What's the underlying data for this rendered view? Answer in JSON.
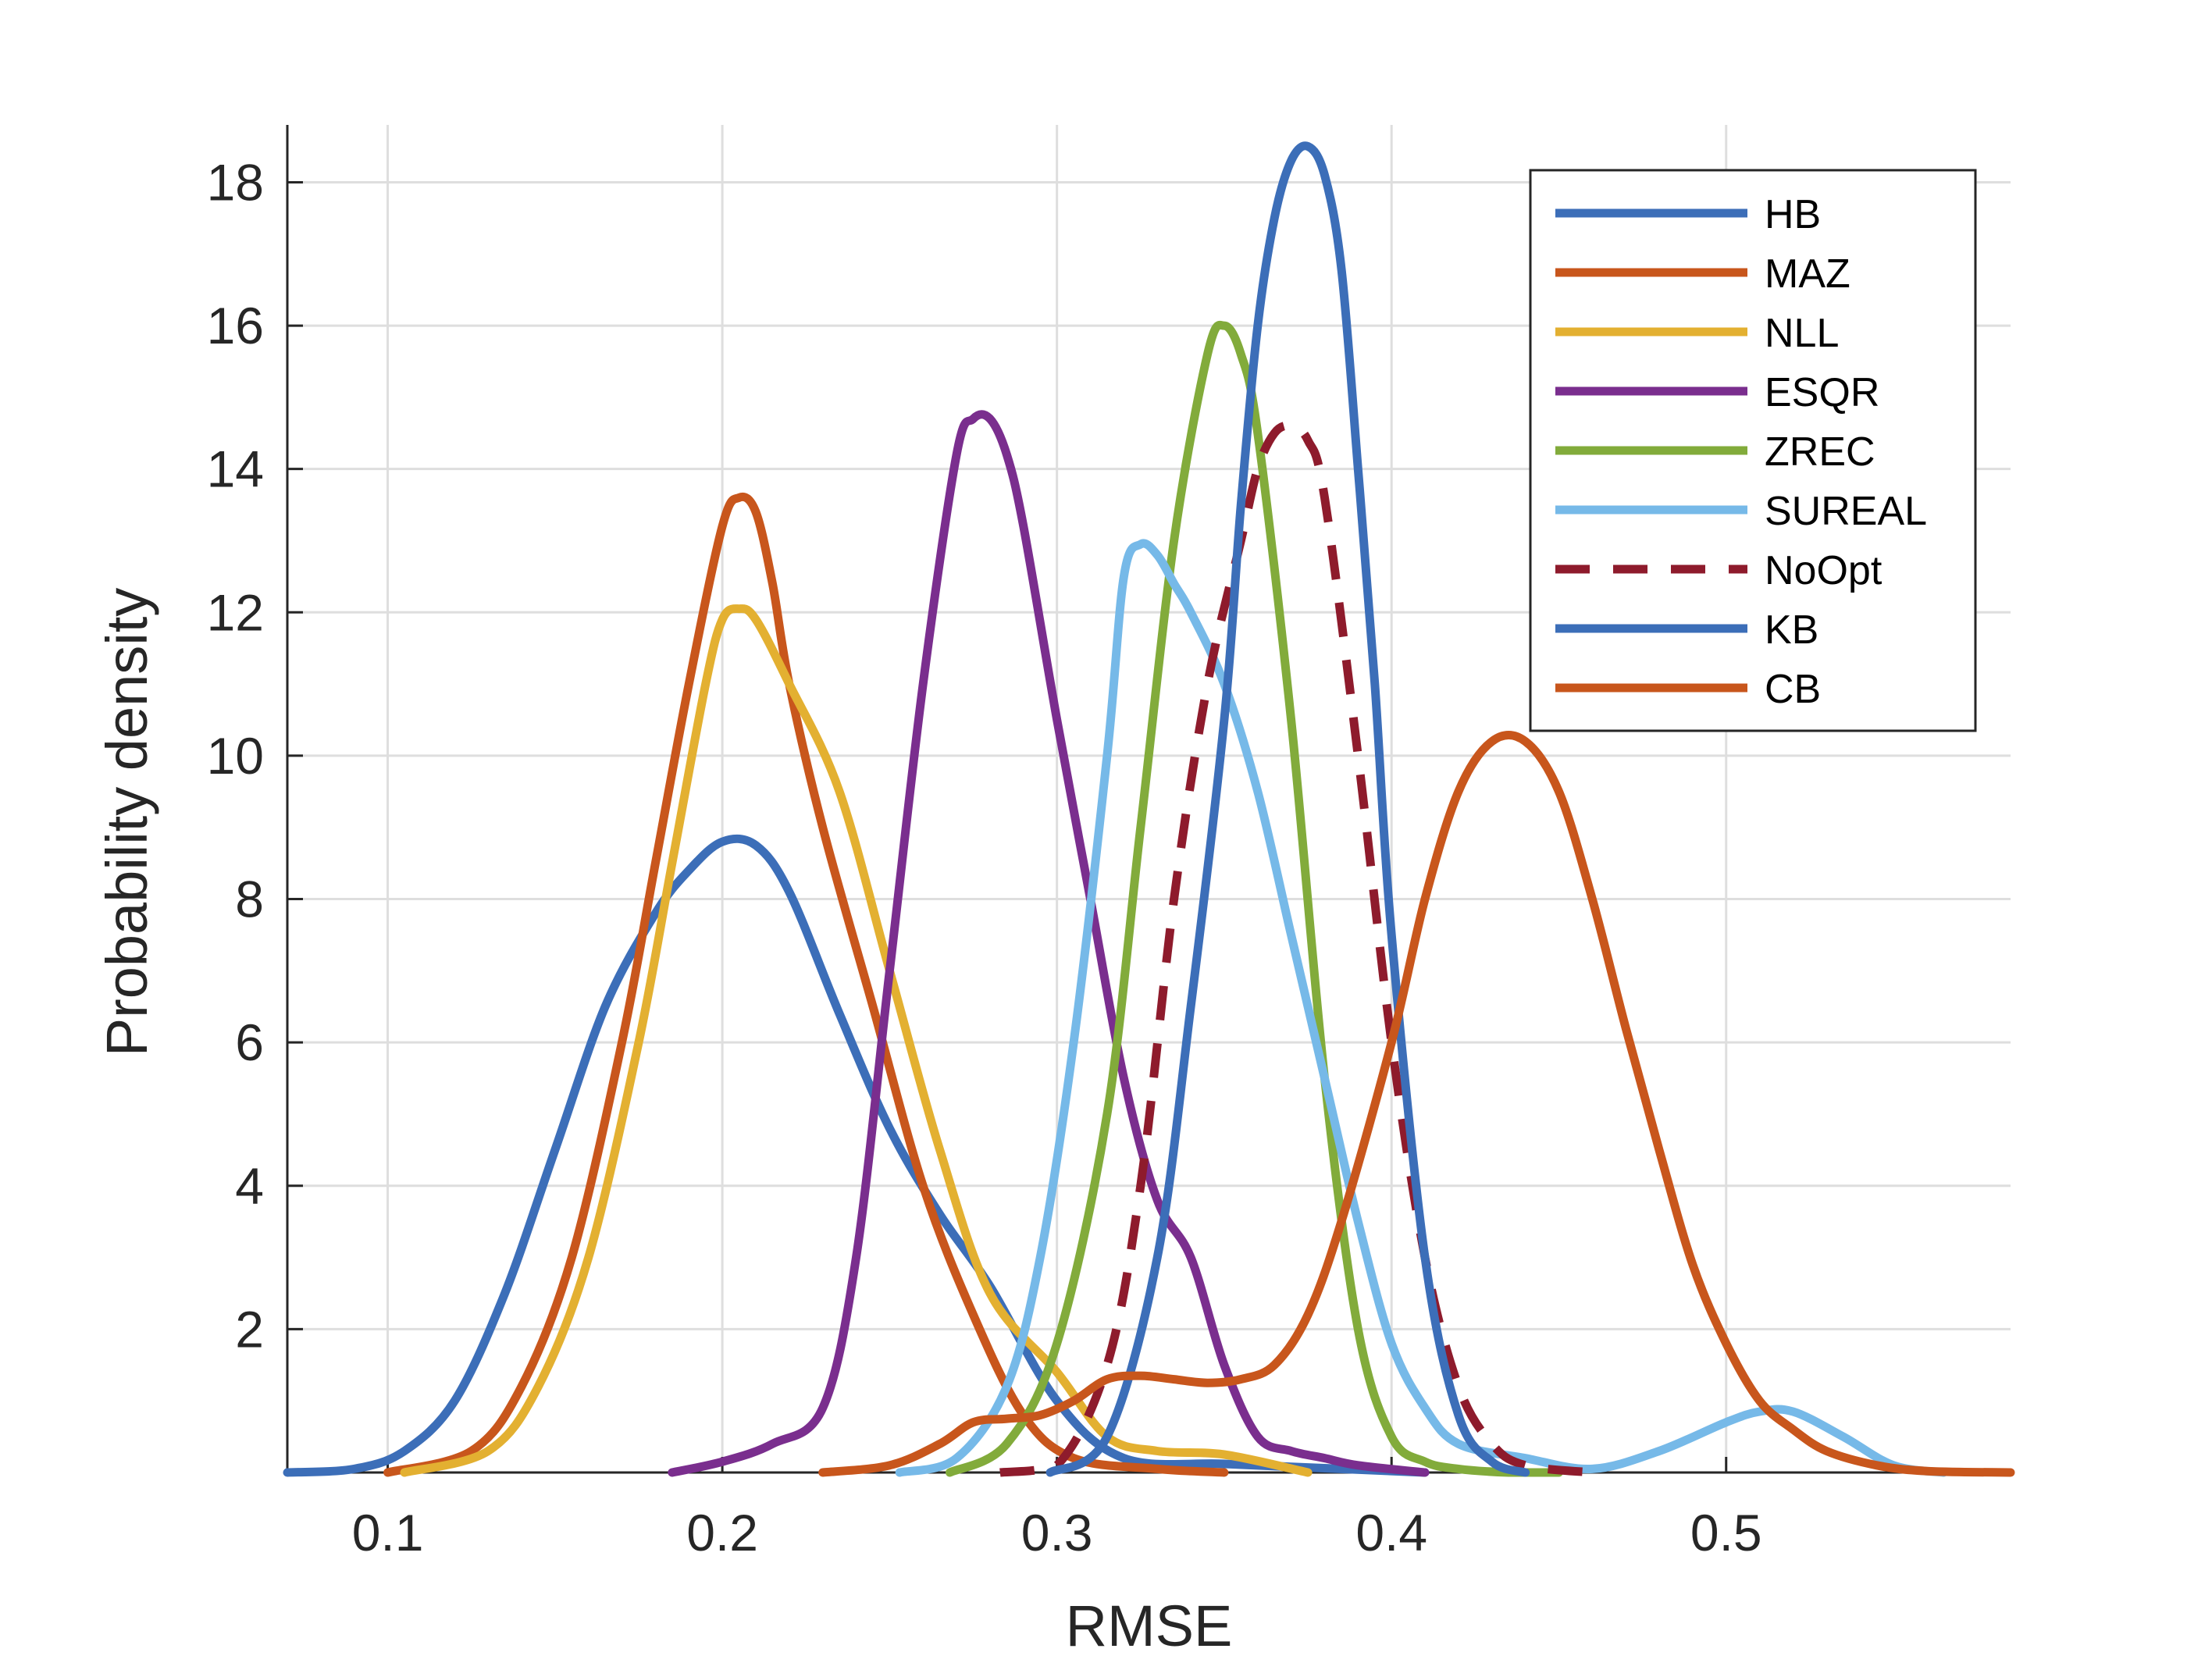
{
  "chart_data": {
    "type": "line",
    "title": "",
    "xlabel": "RMSE",
    "ylabel": "Probability density",
    "xlim": [
      0.07,
      0.585
    ],
    "ylim": [
      0,
      18.8
    ],
    "xticks": [
      0.1,
      0.2,
      0.3,
      0.4,
      0.5
    ],
    "xtick_labels": [
      "0.1",
      "0.2",
      "0.3",
      "0.4",
      "0.5"
    ],
    "yticks": [
      2,
      4,
      6,
      8,
      10,
      12,
      14,
      16,
      18
    ],
    "ytick_labels": [
      "2",
      "4",
      "6",
      "8",
      "10",
      "12",
      "14",
      "16",
      "18"
    ],
    "grid": true,
    "legend_position": "top-right",
    "series": [
      {
        "name": "HB",
        "color": "#3C6EB8",
        "dashed": false,
        "x": [
          0.07,
          0.09,
          0.105,
          0.12,
          0.135,
          0.15,
          0.165,
          0.18,
          0.19,
          0.2,
          0.21,
          0.22,
          0.235,
          0.25,
          0.265,
          0.28,
          0.3,
          0.32,
          0.35,
          0.38,
          0.41
        ],
        "y": [
          0.0,
          0.05,
          0.3,
          1.0,
          2.5,
          4.5,
          6.5,
          7.8,
          8.4,
          8.8,
          8.75,
          8.1,
          6.4,
          4.8,
          3.6,
          2.6,
          1.0,
          0.2,
          0.12,
          0.06,
          0.0
        ]
      },
      {
        "name": "MAZ",
        "color": "#C8561C",
        "dashed": false,
        "x": [
          0.1,
          0.125,
          0.14,
          0.155,
          0.17,
          0.18,
          0.19,
          0.2,
          0.205,
          0.21,
          0.215,
          0.22,
          0.23,
          0.245,
          0.26,
          0.275,
          0.29,
          0.305,
          0.33,
          0.35
        ],
        "y": [
          0.0,
          0.3,
          1.2,
          3.0,
          6.0,
          8.5,
          11.0,
          13.2,
          13.6,
          13.4,
          12.4,
          11.0,
          9.0,
          6.5,
          4.0,
          2.2,
          0.8,
          0.2,
          0.05,
          0.0
        ]
      },
      {
        "name": "NLL",
        "color": "#E3B031",
        "dashed": false,
        "x": [
          0.105,
          0.13,
          0.145,
          0.16,
          0.175,
          0.185,
          0.195,
          0.2,
          0.205,
          0.21,
          0.22,
          0.235,
          0.25,
          0.265,
          0.28,
          0.3,
          0.315,
          0.33,
          0.35,
          0.375
        ],
        "y": [
          0.0,
          0.3,
          1.2,
          3.0,
          6.0,
          8.5,
          11.0,
          11.9,
          12.05,
          11.9,
          11.0,
          9.5,
          7.0,
          4.5,
          2.5,
          1.4,
          0.5,
          0.3,
          0.25,
          0.0
        ]
      },
      {
        "name": "ESQR",
        "color": "#7A2E8E",
        "dashed": false,
        "x": [
          0.185,
          0.2,
          0.215,
          0.23,
          0.24,
          0.25,
          0.26,
          0.27,
          0.275,
          0.28,
          0.285,
          0.29,
          0.3,
          0.31,
          0.32,
          0.33,
          0.34,
          0.35,
          0.36,
          0.37,
          0.38,
          0.39,
          0.41
        ],
        "y": [
          0.0,
          0.15,
          0.4,
          0.9,
          3.0,
          7.0,
          11.0,
          14.2,
          14.7,
          14.7,
          14.2,
          13.2,
          10.5,
          8.0,
          5.5,
          3.8,
          3.0,
          1.5,
          0.5,
          0.3,
          0.2,
          0.1,
          0.0
        ]
      },
      {
        "name": "ZREC",
        "color": "#82AB3B",
        "dashed": false,
        "x": [
          0.268,
          0.285,
          0.3,
          0.315,
          0.325,
          0.335,
          0.345,
          0.35,
          0.355,
          0.36,
          0.37,
          0.38,
          0.39,
          0.4,
          0.41,
          0.42,
          0.435,
          0.45
        ],
        "y": [
          0.0,
          0.4,
          1.8,
          5.0,
          9.0,
          13.0,
          15.6,
          16.0,
          15.6,
          14.5,
          10.5,
          5.5,
          2.0,
          0.5,
          0.15,
          0.05,
          0.0,
          0.0
        ]
      },
      {
        "name": "SUREAL",
        "color": "#76B9E8",
        "dashed": false,
        "x": [
          0.253,
          0.27,
          0.285,
          0.295,
          0.305,
          0.315,
          0.32,
          0.325,
          0.33,
          0.335,
          0.34,
          0.35,
          0.36,
          0.37,
          0.38,
          0.39,
          0.4,
          0.41,
          0.42,
          0.44,
          0.46,
          0.48,
          0.5,
          0.51,
          0.52,
          0.535,
          0.55,
          0.565
        ],
        "y": [
          0.0,
          0.2,
          1.2,
          3.0,
          6.0,
          10.0,
          12.5,
          12.95,
          12.8,
          12.4,
          12.0,
          11.0,
          9.5,
          7.5,
          5.5,
          3.5,
          1.8,
          0.9,
          0.4,
          0.2,
          0.05,
          0.3,
          0.7,
          0.85,
          0.85,
          0.5,
          0.1,
          0.0
        ]
      },
      {
        "name": "NoOpt",
        "color": "#8E1B2C",
        "dashed": true,
        "x": [
          0.283,
          0.3,
          0.315,
          0.325,
          0.335,
          0.345,
          0.355,
          0.36,
          0.365,
          0.37,
          0.375,
          0.38,
          0.39,
          0.4,
          0.41,
          0.42,
          0.43,
          0.44,
          0.46
        ],
        "y": [
          0.0,
          0.1,
          1.5,
          4.0,
          8.0,
          11.0,
          13.0,
          14.0,
          14.5,
          14.6,
          14.4,
          13.6,
          10.0,
          6.0,
          3.0,
          1.2,
          0.4,
          0.1,
          0.0
        ]
      },
      {
        "name": "KB",
        "color": "#3C6EB8",
        "dashed": false,
        "x": [
          0.298,
          0.315,
          0.33,
          0.34,
          0.35,
          0.355,
          0.36,
          0.365,
          0.37,
          0.375,
          0.38,
          0.385,
          0.39,
          0.395,
          0.4,
          0.41,
          0.42,
          0.43,
          0.44
        ],
        "y": [
          0.0,
          0.5,
          3.0,
          6.5,
          10.5,
          13.5,
          16.0,
          17.5,
          18.3,
          18.5,
          18.1,
          16.8,
          14.0,
          11.0,
          7.5,
          3.0,
          0.8,
          0.15,
          0.0
        ]
      },
      {
        "name": "CB",
        "color": "#C8561C",
        "dashed": false,
        "x": [
          0.23,
          0.25,
          0.265,
          0.275,
          0.285,
          0.295,
          0.305,
          0.315,
          0.325,
          0.335,
          0.345,
          0.355,
          0.365,
          0.375,
          0.385,
          0.4,
          0.41,
          0.42,
          0.43,
          0.44,
          0.45,
          0.46,
          0.47,
          0.48,
          0.49,
          0.5,
          0.51,
          0.52,
          0.53,
          0.545,
          0.56,
          0.585
        ],
        "y": [
          0.0,
          0.1,
          0.4,
          0.7,
          0.75,
          0.8,
          1.0,
          1.3,
          1.35,
          1.3,
          1.25,
          1.3,
          1.5,
          2.2,
          3.5,
          6.0,
          8.0,
          9.5,
          10.2,
          10.2,
          9.5,
          8.0,
          6.2,
          4.5,
          2.9,
          1.8,
          1.0,
          0.6,
          0.3,
          0.1,
          0.02,
          0.0
        ]
      }
    ]
  }
}
